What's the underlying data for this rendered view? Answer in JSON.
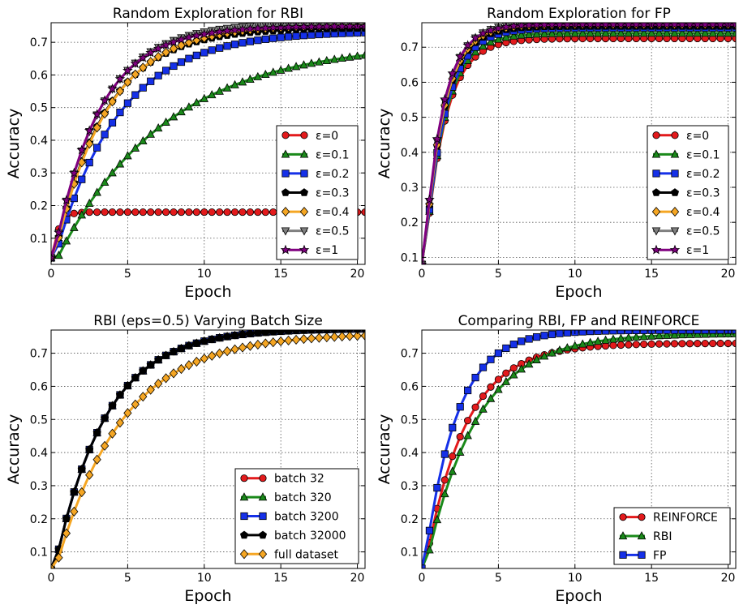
{
  "chart_data": [
    {
      "type": "line",
      "title": "Random Exploration for RBI",
      "xlabel": "Epoch",
      "ylabel": "Accuracy",
      "xlim": [
        0,
        20.5
      ],
      "ylim": [
        0.02,
        0.76
      ],
      "xticks": [
        0,
        5,
        10,
        15,
        20
      ],
      "yticks": [
        0.1,
        0.2,
        0.3,
        0.4,
        0.5,
        0.6,
        0.7
      ],
      "grid": true,
      "legend_position": "bottom-right",
      "series": [
        {
          "name": "ε=0",
          "color": "#e31a1c",
          "marker": "circle",
          "start": 0.04,
          "final": 0.18,
          "k": 2.5
        },
        {
          "name": "ε=0.1",
          "color": "#1a8a1a",
          "marker": "triangle",
          "start": 0.04,
          "final": 0.7,
          "k": 0.14
        },
        {
          "name": "ε=0.2",
          "color": "#1530e8",
          "marker": "square",
          "start": 0.04,
          "final": 0.735,
          "k": 0.24
        },
        {
          "name": "ε=0.3",
          "color": "#000000",
          "marker": "pentagon",
          "start": 0.04,
          "final": 0.745,
          "k": 0.3
        },
        {
          "name": "ε=0.4",
          "color": "#f5a623",
          "marker": "diamond",
          "start": 0.04,
          "final": 0.755,
          "k": 0.29
        },
        {
          "name": "ε=0.5",
          "color": "#808080",
          "marker": "triangle-down",
          "start": 0.04,
          "final": 0.76,
          "k": 0.33
        },
        {
          "name": "ε=1",
          "color": "#800080",
          "marker": "star",
          "start": 0.04,
          "final": 0.75,
          "k": 0.34
        }
      ]
    },
    {
      "type": "line",
      "title": "Random Exploration for FP",
      "xlabel": "Epoch",
      "ylabel": "Accuracy",
      "xlim": [
        0,
        20.5
      ],
      "ylim": [
        0.08,
        0.77
      ],
      "xticks": [
        0,
        5,
        10,
        15,
        20
      ],
      "yticks": [
        0.1,
        0.2,
        0.3,
        0.4,
        0.5,
        0.6,
        0.7
      ],
      "grid": true,
      "legend_position": "bottom-right",
      "series": [
        {
          "name": "ε=0",
          "color": "#e31a1c",
          "marker": "circle",
          "start": 0.08,
          "final": 0.725,
          "k": 0.75
        },
        {
          "name": "ε=0.1",
          "color": "#1a8a1a",
          "marker": "triangle",
          "start": 0.08,
          "final": 0.74,
          "k": 0.75
        },
        {
          "name": "ε=0.2",
          "color": "#1530e8",
          "marker": "square",
          "start": 0.08,
          "final": 0.755,
          "k": 0.75
        },
        {
          "name": "ε=0.3",
          "color": "#000000",
          "marker": "pentagon",
          "start": 0.08,
          "final": 0.76,
          "k": 0.8
        },
        {
          "name": "ε=0.4",
          "color": "#f5a623",
          "marker": "diamond",
          "start": 0.08,
          "final": 0.765,
          "k": 0.8
        },
        {
          "name": "ε=0.5",
          "color": "#808080",
          "marker": "triangle-down",
          "start": 0.08,
          "final": 0.77,
          "k": 0.82
        },
        {
          "name": "ε=1",
          "color": "#800080",
          "marker": "star",
          "start": 0.08,
          "final": 0.765,
          "k": 0.85
        }
      ]
    },
    {
      "type": "line",
      "title": "RBI (eps=0.5) Varying Batch Size",
      "xlabel": "Epoch",
      "ylabel": "Accuracy",
      "xlim": [
        0,
        20.5
      ],
      "ylim": [
        0.05,
        0.77
      ],
      "xticks": [
        0,
        5,
        10,
        15,
        20
      ],
      "yticks": [
        0.1,
        0.2,
        0.3,
        0.4,
        0.5,
        0.6,
        0.7
      ],
      "grid": true,
      "legend_position": "bottom-right",
      "series": [
        {
          "name": "batch 32",
          "color": "#e31a1c",
          "marker": "circle",
          "start": 0.05,
          "final": 0.775,
          "k": 0.3
        },
        {
          "name": "batch 320",
          "color": "#1a8a1a",
          "marker": "triangle",
          "start": 0.05,
          "final": 0.775,
          "k": 0.3
        },
        {
          "name": "batch 3200",
          "color": "#1530e8",
          "marker": "square",
          "start": 0.05,
          "final": 0.775,
          "k": 0.3
        },
        {
          "name": "batch 32000",
          "color": "#000000",
          "marker": "pentagon",
          "start": 0.05,
          "final": 0.775,
          "k": 0.3
        },
        {
          "name": "full dataset",
          "color": "#f5a623",
          "marker": "diamond",
          "start": 0.05,
          "final": 0.76,
          "k": 0.23
        }
      ]
    },
    {
      "type": "line",
      "title": "Comparing RBI, FP and REINFORCE",
      "xlabel": "Epoch",
      "ylabel": "Accuracy",
      "xlim": [
        0,
        20.5
      ],
      "ylim": [
        0.05,
        0.77
      ],
      "xticks": [
        0,
        5,
        10,
        15,
        20
      ],
      "yticks": [
        0.1,
        0.2,
        0.3,
        0.4,
        0.5,
        0.6,
        0.7
      ],
      "grid": true,
      "legend_position": "bottom-right",
      "series": [
        {
          "name": "REINFORCE",
          "color": "#e31a1c",
          "marker": "circle",
          "start": 0.05,
          "final": 0.73,
          "k": 0.38
        },
        {
          "name": "RBI",
          "color": "#1a8a1a",
          "marker": "triangle",
          "start": 0.05,
          "final": 0.76,
          "k": 0.3
        },
        {
          "name": "FP",
          "color": "#1530e8",
          "marker": "square",
          "start": 0.05,
          "final": 0.77,
          "k": 0.48
        }
      ]
    }
  ]
}
